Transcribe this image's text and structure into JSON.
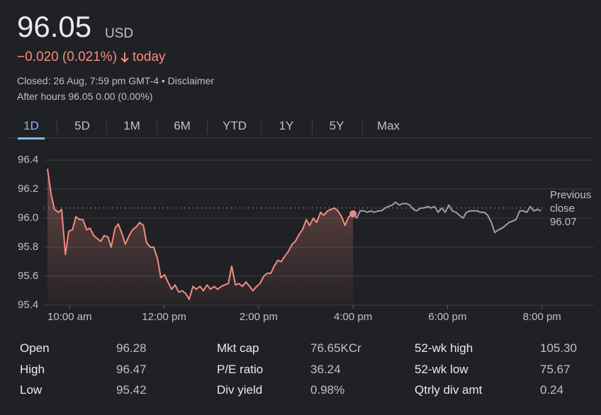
{
  "header": {
    "price": "96.05",
    "currency": "USD",
    "change": "−0.020 (0.021%)",
    "change_suffix": "today",
    "closed": "Closed: 26 Aug, 7:59 pm GMT-4 • Disclaimer",
    "after_hours": "After hours 96.05 0.00 (0.00%)"
  },
  "tabs": [
    "1D",
    "5D",
    "1M",
    "6M",
    "YTD",
    "1Y",
    "5Y",
    "Max"
  ],
  "active_tab": 0,
  "chart_data": {
    "type": "line",
    "xlim": [
      8.9,
      21.1
    ],
    "ylim": [
      95.4,
      96.4
    ],
    "grid": true,
    "xticks": [
      {
        "value": 10,
        "label": "10:00 am"
      },
      {
        "value": 12,
        "label": "12:00 pm"
      },
      {
        "value": 14,
        "label": "2:00 pm"
      },
      {
        "value": 16,
        "label": "4:00 pm"
      },
      {
        "value": 18,
        "label": "6:00 pm"
      },
      {
        "value": 20,
        "label": "8:00 pm"
      }
    ],
    "yticks": [
      96.4,
      96.2,
      {
        "value": 96,
        "label": "96.0"
      },
      95.8,
      95.6,
      95.4
    ],
    "reference": {
      "label": "Previous close",
      "value": 96.07,
      "color": "#9aa0a6"
    },
    "series": [
      {
        "color": "#f28b82",
        "x": [
          9.53,
          9.61,
          9.68,
          9.76,
          9.83,
          9.91,
          9.98,
          10.06,
          10.13,
          10.21,
          10.28,
          10.36,
          10.43,
          10.51,
          10.58,
          10.66,
          10.73,
          10.81,
          10.88,
          10.96,
          11.03,
          11.11,
          11.18,
          11.26,
          11.33,
          11.41,
          11.48,
          11.56,
          11.63,
          11.71,
          11.78,
          11.86,
          11.93,
          12.01,
          12.08,
          12.16,
          12.23,
          12.31,
          12.38,
          12.46,
          12.53,
          12.61,
          12.68,
          12.76,
          12.83,
          12.91,
          12.98,
          13.06,
          13.13,
          13.21,
          13.28,
          13.36,
          13.43,
          13.51,
          13.58,
          13.66,
          13.73,
          13.81,
          13.88,
          13.96,
          14.03,
          14.11,
          14.18,
          14.26,
          14.33,
          14.41,
          14.48,
          14.56,
          14.63,
          14.71,
          14.78,
          14.86,
          14.93,
          15.01,
          15.08,
          15.16,
          15.23,
          15.31,
          15.38,
          15.46,
          15.53,
          15.61,
          15.68,
          15.76,
          15.83,
          15.91,
          16.0
        ],
        "values": [
          96.34,
          96.16,
          96.06,
          96.04,
          96.06,
          95.75,
          95.91,
          95.92,
          96.01,
          95.99,
          95.99,
          95.92,
          95.93,
          95.88,
          95.86,
          95.84,
          95.88,
          95.87,
          95.8,
          95.93,
          95.96,
          95.89,
          95.82,
          95.88,
          95.92,
          95.94,
          95.97,
          95.95,
          95.83,
          95.8,
          95.8,
          95.72,
          95.59,
          95.61,
          95.56,
          95.51,
          95.54,
          95.49,
          95.5,
          95.48,
          95.44,
          95.53,
          95.51,
          95.53,
          95.5,
          95.54,
          95.51,
          95.53,
          95.51,
          95.53,
          95.54,
          95.55,
          95.67,
          95.54,
          95.55,
          95.53,
          95.56,
          95.53,
          95.5,
          95.53,
          95.55,
          95.6,
          95.62,
          95.62,
          95.67,
          95.71,
          95.7,
          95.74,
          95.77,
          95.82,
          95.84,
          95.89,
          95.92,
          95.99,
          95.95,
          96.0,
          95.97,
          96.04,
          96.02,
          96.05,
          96.06,
          96.07,
          96.05,
          96.01,
          95.95,
          96.01,
          96.03
        ]
      },
      {
        "color": "#9aa0a6",
        "x": [
          16.0,
          16.08,
          16.15,
          16.23,
          16.3,
          16.38,
          16.45,
          16.53,
          16.6,
          16.68,
          16.75,
          16.83,
          16.9,
          16.98,
          17.05,
          17.13,
          17.2,
          17.28,
          17.35,
          17.43,
          17.5,
          17.58,
          17.65,
          17.73,
          17.8,
          17.88,
          17.95,
          18.03,
          18.1,
          18.18,
          18.25,
          18.33,
          18.4,
          18.48,
          18.55,
          18.63,
          18.7,
          18.78,
          18.85,
          18.93,
          19.0,
          19.08,
          19.15,
          19.23,
          19.3,
          19.38,
          19.45,
          19.53,
          19.6,
          19.68,
          19.75,
          19.83,
          19.9,
          19.98
        ],
        "values": [
          96.03,
          96.0,
          96.05,
          96.05,
          96.04,
          96.05,
          96.04,
          96.05,
          96.05,
          96.07,
          96.08,
          96.09,
          96.11,
          96.09,
          96.1,
          96.1,
          96.09,
          96.06,
          96.05,
          96.07,
          96.07,
          96.08,
          96.07,
          96.08,
          96.04,
          96.07,
          96.04,
          96.09,
          96.05,
          96.04,
          96.02,
          96.0,
          96.04,
          96.05,
          96.05,
          96.05,
          96.04,
          96.04,
          96.02,
          95.97,
          95.9,
          95.92,
          95.93,
          95.95,
          95.97,
          95.98,
          95.99,
          96.05,
          96.05,
          96.04,
          96.08,
          96.05,
          96.06,
          96.05
        ]
      }
    ]
  },
  "stats": [
    {
      "label": "Open",
      "value": "96.28"
    },
    {
      "label": "Mkt cap",
      "value": "76.65KCr"
    },
    {
      "label": "52-wk high",
      "value": "105.30"
    },
    {
      "label": "High",
      "value": "96.47"
    },
    {
      "label": "P/E ratio",
      "value": "36.24"
    },
    {
      "label": "52-wk low",
      "value": "75.67"
    },
    {
      "label": "Low",
      "value": "95.42"
    },
    {
      "label": "Div yield",
      "value": "0.98%"
    },
    {
      "label": "Qtrly div amt",
      "value": "0.24"
    }
  ]
}
